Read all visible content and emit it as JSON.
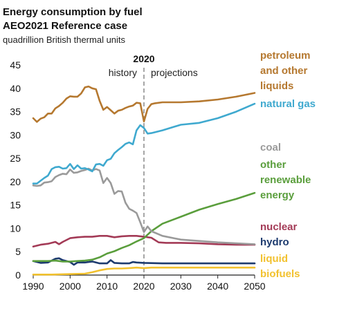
{
  "chart_data": {
    "type": "line",
    "title": "Energy consumption by fuel",
    "subtitle": "AEO2021 Reference case",
    "unit_label": "quadrillion British thermal units",
    "xlim": [
      1990,
      2050
    ],
    "ylim": [
      0,
      45
    ],
    "x_ticks": [
      "1990",
      "2000",
      "2010",
      "2020",
      "2030",
      "2040",
      "2050"
    ],
    "y_ticks": [
      "0",
      "5",
      "10",
      "15",
      "20",
      "25",
      "30",
      "35",
      "40",
      "45"
    ],
    "divider": {
      "year": 2020,
      "label": "2020",
      "left_label": "history",
      "right_label": "projections"
    },
    "grid": false,
    "series": [
      {
        "name": "petroleum and other liquids",
        "label_lines": [
          "petroleum",
          "and other",
          "liquids"
        ],
        "color": "#b5782f",
        "points": [
          [
            1990,
            33.6
          ],
          [
            1991,
            32.8
          ],
          [
            1992,
            33.5
          ],
          [
            1993,
            33.8
          ],
          [
            1994,
            34.6
          ],
          [
            1995,
            34.6
          ],
          [
            1996,
            35.7
          ],
          [
            1997,
            36.2
          ],
          [
            1998,
            36.9
          ],
          [
            1999,
            37.8
          ],
          [
            2000,
            38.3
          ],
          [
            2001,
            38.2
          ],
          [
            2002,
            38.2
          ],
          [
            2003,
            38.9
          ],
          [
            2004,
            40.2
          ],
          [
            2005,
            40.4
          ],
          [
            2006,
            40.0
          ],
          [
            2007,
            39.8
          ],
          [
            2008,
            37.3
          ],
          [
            2009,
            35.4
          ],
          [
            2010,
            36.0
          ],
          [
            2011,
            35.3
          ],
          [
            2012,
            34.6
          ],
          [
            2013,
            35.2
          ],
          [
            2014,
            35.4
          ],
          [
            2015,
            35.8
          ],
          [
            2016,
            36.1
          ],
          [
            2017,
            36.3
          ],
          [
            2018,
            36.9
          ],
          [
            2019,
            36.8
          ],
          [
            2020,
            32.9
          ],
          [
            2021,
            35.6
          ],
          [
            2022,
            36.6
          ],
          [
            2023,
            36.8
          ],
          [
            2025,
            37.0
          ],
          [
            2030,
            37.0
          ],
          [
            2035,
            37.2
          ],
          [
            2040,
            37.6
          ],
          [
            2045,
            38.2
          ],
          [
            2050,
            39.0
          ]
        ]
      },
      {
        "name": "natural gas",
        "label_lines": [
          "natural gas"
        ],
        "color": "#3fa9cf",
        "points": [
          [
            1990,
            19.6
          ],
          [
            1991,
            19.6
          ],
          [
            1992,
            20.2
          ],
          [
            1993,
            20.8
          ],
          [
            1994,
            21.3
          ],
          [
            1995,
            22.7
          ],
          [
            1996,
            23.1
          ],
          [
            1997,
            23.2
          ],
          [
            1998,
            22.8
          ],
          [
            1999,
            22.9
          ],
          [
            2000,
            23.8
          ],
          [
            2001,
            22.7
          ],
          [
            2002,
            23.5
          ],
          [
            2003,
            22.8
          ],
          [
            2004,
            22.9
          ],
          [
            2005,
            22.6
          ],
          [
            2006,
            22.2
          ],
          [
            2007,
            23.7
          ],
          [
            2008,
            23.8
          ],
          [
            2009,
            23.4
          ],
          [
            2010,
            24.6
          ],
          [
            2011,
            24.9
          ],
          [
            2012,
            26.1
          ],
          [
            2013,
            26.8
          ],
          [
            2014,
            27.4
          ],
          [
            2015,
            28.1
          ],
          [
            2016,
            28.4
          ],
          [
            2017,
            28.0
          ],
          [
            2018,
            31.0
          ],
          [
            2019,
            32.1
          ],
          [
            2020,
            31.5
          ],
          [
            2021,
            30.3
          ],
          [
            2022,
            30.4
          ],
          [
            2025,
            31.0
          ],
          [
            2030,
            32.2
          ],
          [
            2035,
            32.6
          ],
          [
            2040,
            33.6
          ],
          [
            2045,
            35.0
          ],
          [
            2050,
            36.7
          ]
        ]
      },
      {
        "name": "coal",
        "label_lines": [
          "coal"
        ],
        "color": "#9a9a9a",
        "points": [
          [
            1990,
            19.2
          ],
          [
            1991,
            19.1
          ],
          [
            1992,
            19.2
          ],
          [
            1993,
            19.8
          ],
          [
            1994,
            19.9
          ],
          [
            1995,
            20.1
          ],
          [
            1996,
            21.0
          ],
          [
            1997,
            21.4
          ],
          [
            1998,
            21.7
          ],
          [
            1999,
            21.6
          ],
          [
            2000,
            22.6
          ],
          [
            2001,
            21.9
          ],
          [
            2002,
            22.0
          ],
          [
            2003,
            22.3
          ],
          [
            2004,
            22.5
          ],
          [
            2005,
            22.8
          ],
          [
            2006,
            22.4
          ],
          [
            2007,
            22.7
          ],
          [
            2008,
            22.4
          ],
          [
            2009,
            19.7
          ],
          [
            2010,
            20.8
          ],
          [
            2011,
            19.7
          ],
          [
            2012,
            17.4
          ],
          [
            2013,
            18.0
          ],
          [
            2014,
            17.9
          ],
          [
            2015,
            15.5
          ],
          [
            2016,
            14.2
          ],
          [
            2017,
            13.8
          ],
          [
            2018,
            13.3
          ],
          [
            2019,
            11.3
          ],
          [
            2020,
            9.2
          ],
          [
            2021,
            10.4
          ],
          [
            2022,
            9.4
          ],
          [
            2025,
            8.4
          ],
          [
            2030,
            7.6
          ],
          [
            2035,
            7.3
          ],
          [
            2040,
            7.0
          ],
          [
            2045,
            6.8
          ],
          [
            2050,
            6.6
          ]
        ]
      },
      {
        "name": "other renewable energy",
        "label_lines": [
          "other",
          "renewable",
          "energy"
        ],
        "color": "#5a9e3c",
        "points": [
          [
            1990,
            3.0
          ],
          [
            1992,
            3.0
          ],
          [
            1994,
            3.0
          ],
          [
            1996,
            3.1
          ],
          [
            1998,
            2.9
          ],
          [
            2000,
            2.9
          ],
          [
            2002,
            3.0
          ],
          [
            2004,
            3.1
          ],
          [
            2006,
            3.3
          ],
          [
            2008,
            3.8
          ],
          [
            2010,
            4.6
          ],
          [
            2012,
            5.1
          ],
          [
            2014,
            5.8
          ],
          [
            2016,
            6.4
          ],
          [
            2018,
            7.2
          ],
          [
            2020,
            7.9
          ],
          [
            2022,
            9.4
          ],
          [
            2025,
            11.0
          ],
          [
            2030,
            12.5
          ],
          [
            2035,
            14.0
          ],
          [
            2040,
            15.2
          ],
          [
            2045,
            16.3
          ],
          [
            2050,
            17.6
          ]
        ]
      },
      {
        "name": "nuclear",
        "label_lines": [
          "nuclear"
        ],
        "color": "#a33a56",
        "points": [
          [
            1990,
            6.1
          ],
          [
            1992,
            6.5
          ],
          [
            1994,
            6.7
          ],
          [
            1996,
            7.1
          ],
          [
            1997,
            6.6
          ],
          [
            1998,
            7.1
          ],
          [
            2000,
            7.9
          ],
          [
            2002,
            8.1
          ],
          [
            2004,
            8.2
          ],
          [
            2006,
            8.2
          ],
          [
            2008,
            8.4
          ],
          [
            2010,
            8.4
          ],
          [
            2012,
            8.1
          ],
          [
            2014,
            8.3
          ],
          [
            2016,
            8.4
          ],
          [
            2018,
            8.4
          ],
          [
            2020,
            8.2
          ],
          [
            2022,
            8.0
          ],
          [
            2024,
            7.0
          ],
          [
            2026,
            6.9
          ],
          [
            2030,
            6.9
          ],
          [
            2035,
            6.8
          ],
          [
            2040,
            6.6
          ],
          [
            2045,
            6.5
          ],
          [
            2050,
            6.5
          ]
        ]
      },
      {
        "name": "hydro",
        "label_lines": [
          "hydro"
        ],
        "color": "#1c3a6e",
        "points": [
          [
            1990,
            3.0
          ],
          [
            1992,
            2.6
          ],
          [
            1994,
            2.7
          ],
          [
            1996,
            3.5
          ],
          [
            1997,
            3.6
          ],
          [
            1998,
            3.2
          ],
          [
            2000,
            2.8
          ],
          [
            2001,
            2.2
          ],
          [
            2002,
            2.7
          ],
          [
            2004,
            2.7
          ],
          [
            2006,
            2.9
          ],
          [
            2008,
            2.5
          ],
          [
            2010,
            2.5
          ],
          [
            2011,
            3.2
          ],
          [
            2012,
            2.6
          ],
          [
            2014,
            2.5
          ],
          [
            2016,
            2.5
          ],
          [
            2017,
            2.8
          ],
          [
            2018,
            2.7
          ],
          [
            2020,
            2.6
          ],
          [
            2025,
            2.5
          ],
          [
            2030,
            2.5
          ],
          [
            2040,
            2.5
          ],
          [
            2050,
            2.5
          ]
        ]
      },
      {
        "name": "liquid biofuels",
        "label_lines": [
          "liquid",
          "biofuels"
        ],
        "color": "#f2c12e",
        "points": [
          [
            1990,
            0.1
          ],
          [
            1995,
            0.1
          ],
          [
            2000,
            0.2
          ],
          [
            2004,
            0.3
          ],
          [
            2006,
            0.6
          ],
          [
            2008,
            1.0
          ],
          [
            2010,
            1.3
          ],
          [
            2012,
            1.4
          ],
          [
            2014,
            1.4
          ],
          [
            2016,
            1.5
          ],
          [
            2018,
            1.6
          ],
          [
            2020,
            1.5
          ],
          [
            2022,
            1.6
          ],
          [
            2025,
            1.6
          ],
          [
            2030,
            1.6
          ],
          [
            2040,
            1.6
          ],
          [
            2050,
            1.6
          ]
        ]
      }
    ]
  }
}
